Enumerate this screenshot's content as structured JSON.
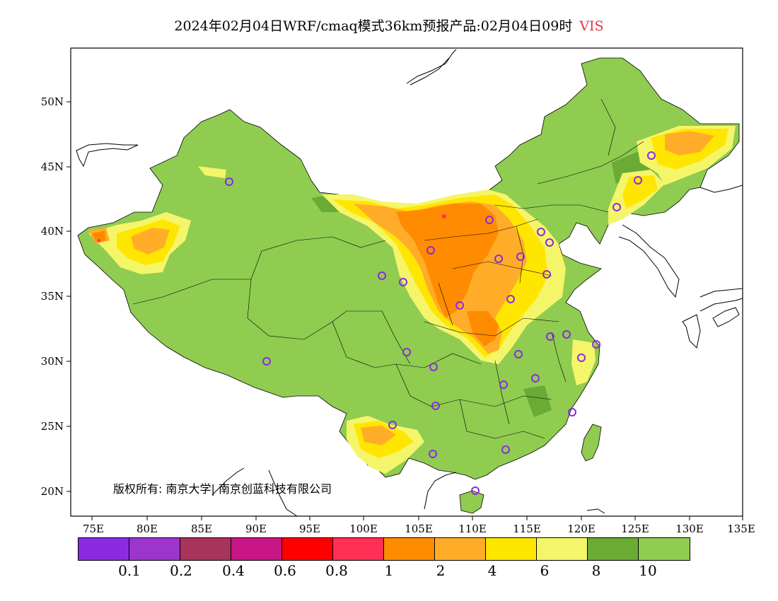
{
  "title": {
    "main": "2024年02月04日WRF/cmaq模式36km预报产品:02月04日09时",
    "variable": "VIS"
  },
  "copyright": "版权所有: 南京大学| 南京创蓝科技有限公司",
  "axes": {
    "x_ticks": [
      "75E",
      "80E",
      "85E",
      "90E",
      "95E",
      "100E",
      "105E",
      "110E",
      "115E",
      "120E",
      "125E",
      "130E",
      "135E"
    ],
    "y_ticks": [
      "50N",
      "45N",
      "40N",
      "35N",
      "30N",
      "25N",
      "20N"
    ]
  },
  "legend": {
    "colors": [
      "#8a2be2",
      "#9b35cc",
      "#a8335b",
      "#c71585",
      "#ff0000",
      "#ff2f55",
      "#ff8c00",
      "#ffad29",
      "#ffe600",
      "#f5f56a",
      "#6aab35",
      "#8fcc50"
    ],
    "labels": [
      "0.1",
      "0.2",
      "0.4",
      "0.6",
      "0.8",
      "1",
      "2",
      "4",
      "6",
      "8",
      "10"
    ]
  },
  "colors": {
    "land_green": "#8fcc50",
    "dark_green": "#6aab35",
    "light_yellow": "#f5f56a",
    "yellow": "#ffe600",
    "light_orange": "#ffad29",
    "orange": "#ff8c00",
    "station_marker": "#8a2be2"
  }
}
